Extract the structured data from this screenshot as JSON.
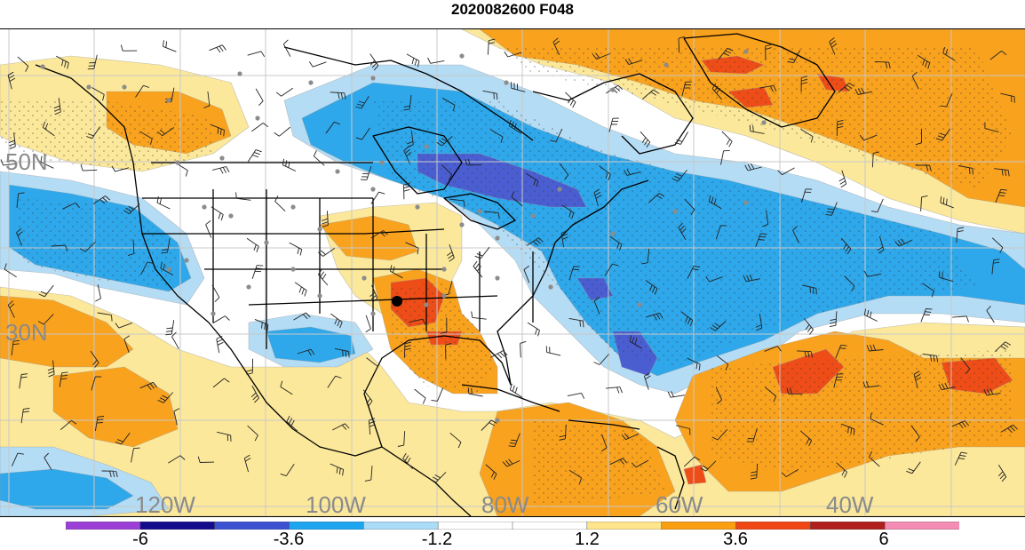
{
  "title": "2020082600 F048",
  "map": {
    "lat_labels": [
      "50N",
      "30N"
    ],
    "lon_labels": [
      "120W",
      "100W",
      "80W",
      "60W",
      "40W"
    ]
  },
  "colorbar": {
    "colors": [
      "#9b3fd6",
      "#140a8c",
      "#3c50d2",
      "#1ea5f0",
      "#aadcf8",
      "#ffffff",
      "#ffffff",
      "#ffe68c",
      "#fa9f12",
      "#f04614",
      "#b01e1e",
      "#f58cb4"
    ],
    "tick_labels": [
      "-6",
      "-3.6",
      "-1.2",
      "1.2",
      "3.6",
      "6"
    ]
  },
  "palette": {
    "light_blue": "#b4dcf5",
    "blue": "#2ea8ea",
    "dark_blue": "#4a5ed2",
    "light_yellow": "#fce89a",
    "orange": "#f9a21e",
    "red": "#ef4d18",
    "coast": "#000000",
    "grid": "#c8c8c8",
    "station": "#8c8c8c"
  }
}
